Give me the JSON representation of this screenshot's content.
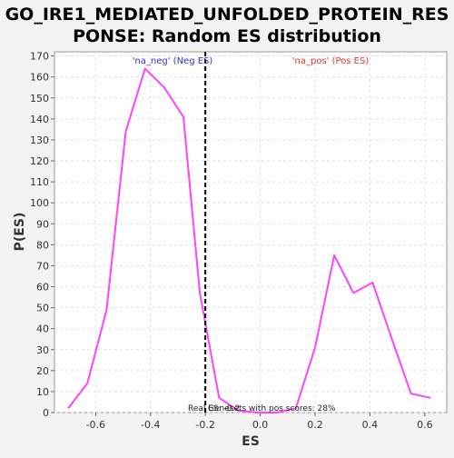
{
  "chart_data": {
    "type": "line",
    "title_line1": "GO_IRE1_MEDIATED_UNFOLDED_PROTEIN_RES",
    "title_line2": "PONSE: Random ES distribution",
    "xlabel": "ES",
    "ylabel": "P(ES)",
    "xlim": [
      -0.75,
      0.68
    ],
    "ylim": [
      0,
      172
    ],
    "x_ticks": [
      -0.6,
      -0.4,
      -0.2,
      0.0,
      0.2,
      0.4,
      0.6
    ],
    "x_tick_labels": [
      "-0.6",
      "-0.4",
      "-0.2",
      "0.0",
      "0.2",
      "0.4",
      "0.6"
    ],
    "y_ticks": [
      0,
      10,
      20,
      30,
      40,
      50,
      60,
      70,
      80,
      90,
      100,
      110,
      120,
      130,
      140,
      150,
      160,
      170
    ],
    "grid": true,
    "series": [
      {
        "color": "#ff44ff",
        "x": [
          -0.7,
          -0.63,
          -0.56,
          -0.49,
          -0.42,
          -0.35,
          -0.28,
          -0.22,
          -0.15,
          -0.08,
          -0.01,
          0.06,
          0.13,
          0.2,
          0.27,
          0.34,
          0.41,
          0.48,
          0.55,
          0.62
        ],
        "y": [
          2,
          14,
          49,
          134,
          164,
          155,
          141,
          57,
          7,
          1,
          0,
          0,
          2,
          31,
          75,
          57,
          62,
          35,
          9,
          7
        ]
      }
    ],
    "real_es": {
      "x": -0.2,
      "color": "#000000",
      "label": "Real ES: -0.2"
    },
    "annotations": {
      "neg_label": "'na_neg' (Neg ES)",
      "neg_color": "#3333cc",
      "pos_label": "'na_pos' (Pos ES)",
      "pos_color": "#ee3333",
      "pos_scores_label": "Genesets with pos scores: 28%"
    }
  }
}
